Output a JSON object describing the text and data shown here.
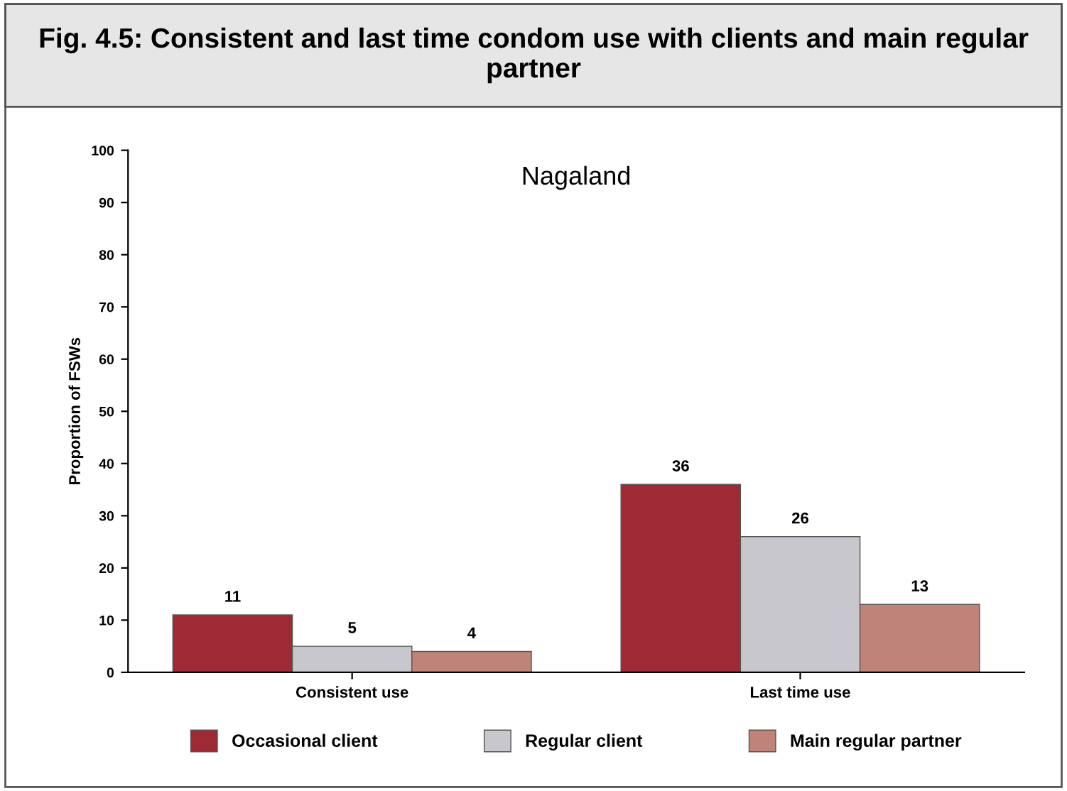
{
  "chart_data": {
    "type": "bar",
    "title": "Fig. 4.5: Consistent and last time condom use with clients and main regular partner",
    "subtitle": "Nagaland",
    "ylabel": "Proportion of FSWs",
    "categories": [
      "Consistent use",
      "Last time use"
    ],
    "series": [
      {
        "name": "Occasional client",
        "color": "#9e2a35",
        "values": [
          11,
          36
        ]
      },
      {
        "name": "Regular client",
        "color": "#c8c8cc",
        "values": [
          5,
          26
        ]
      },
      {
        "name": "Main regular partner",
        "color": "#c0837a",
        "values": [
          4,
          13
        ]
      }
    ],
    "ylim": [
      0,
      100
    ],
    "yticks": [
      0,
      10,
      20,
      30,
      40,
      50,
      60,
      70,
      80,
      90,
      100
    ],
    "data_labels": true,
    "grid": false,
    "legend": "bottom"
  }
}
